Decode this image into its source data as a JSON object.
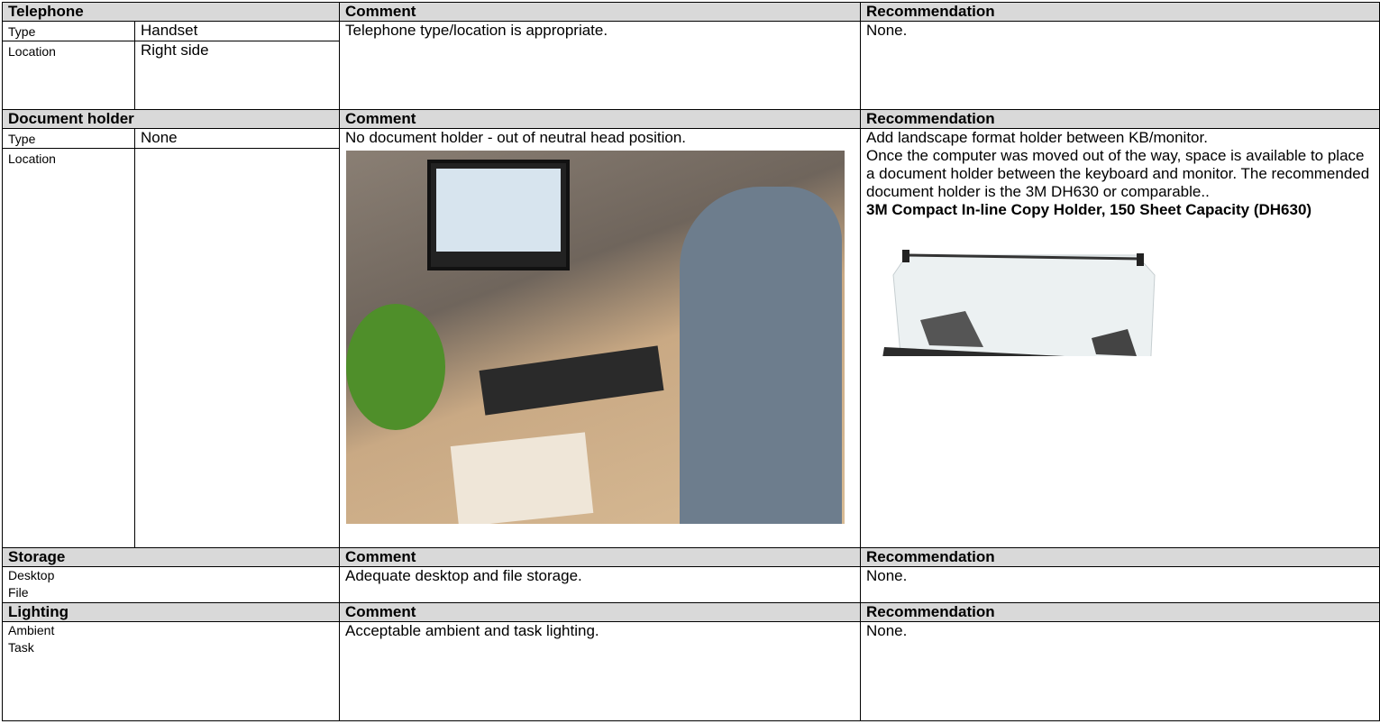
{
  "sections": [
    {
      "title": "Telephone",
      "comment_heading": "Comment",
      "recommendation_heading": "Recommendation",
      "fields": [
        {
          "label": "Type",
          "value": "Handset"
        },
        {
          "label": "Location",
          "value": "Right side"
        }
      ],
      "comment": "Telephone type/location is appropriate.",
      "recommendation": "None."
    },
    {
      "title": "Document holder",
      "comment_heading": "Comment",
      "recommendation_heading": "Recommendation",
      "fields": [
        {
          "label": "Type",
          "value": "None"
        },
        {
          "label": "Location"
        }
      ],
      "comment": "No document holder - out of neutral head position.",
      "recommendation": "Add landscape format holder between KB/monitor.",
      "recommendation_detail": "Once the computer was moved out of the way, space is available to place a document holder between the keyboard and monitor. The recommended document holder is the 3M DH630 or comparable..",
      "product": "3M Compact In-line Copy Holder, 150 Sheet Capacity (DH630)"
    },
    {
      "title": "Storage",
      "comment_heading": "Comment",
      "recommendation_heading": "Recommendation",
      "fields": [
        {
          "label": "Desktop"
        },
        {
          "label": "File"
        }
      ],
      "comment": "Adequate desktop and file storage.",
      "recommendation": "None."
    },
    {
      "title": "Lighting",
      "comment_heading": "Comment",
      "recommendation_heading": "Recommendation",
      "fields": [
        {
          "label": "Ambient"
        },
        {
          "label": "Task"
        }
      ],
      "comment": "Acceptable ambient and task lighting.",
      "recommendation": "None."
    }
  ]
}
